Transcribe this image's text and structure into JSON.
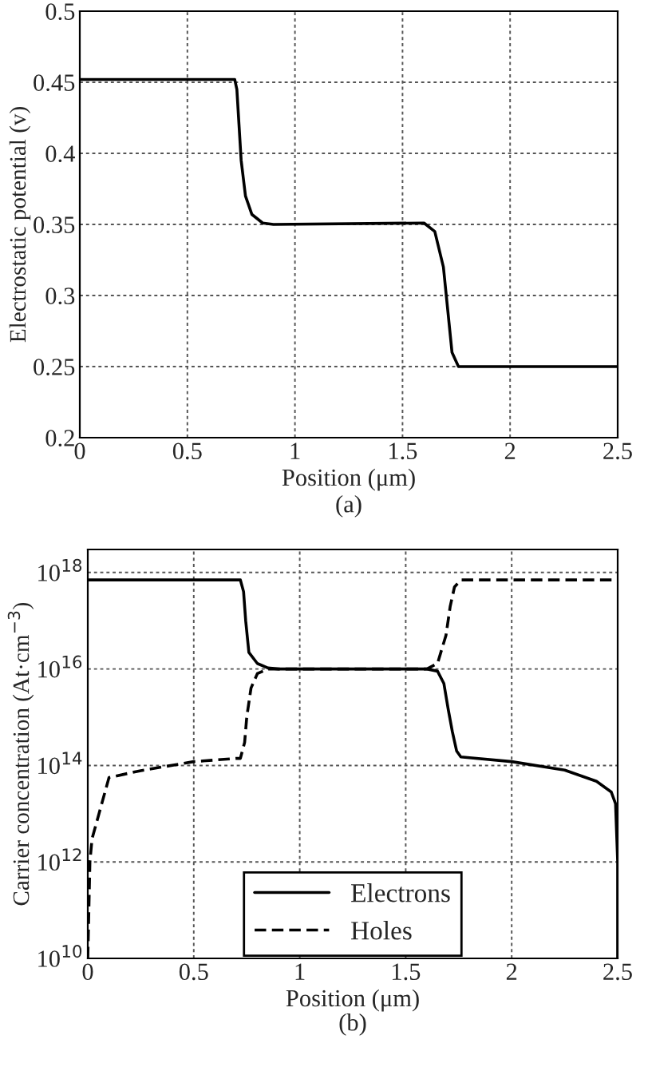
{
  "chart_data": [
    {
      "type": "line",
      "xlabel": "Position (μm)",
      "ylabel": "Electrostatic potential (v)",
      "annotations": [
        "(a)"
      ],
      "xlim": [
        0,
        2.5
      ],
      "xticks": [
        0,
        0.5,
        1,
        1.5,
        2,
        2.5
      ],
      "ylim": [
        0.2,
        0.5
      ],
      "yticks": [
        0.2,
        0.25,
        0.3,
        0.35,
        0.4,
        0.45,
        0.5
      ],
      "grid": true,
      "legend": false,
      "series": [
        {
          "color": "#000000",
          "line_style": "solid",
          "x": [
            0,
            0.72,
            0.73,
            0.74,
            0.75,
            0.77,
            0.8,
            0.85,
            0.9,
            1.6,
            1.65,
            1.69,
            1.71,
            1.73,
            1.76,
            2.5
          ],
          "values": [
            0.452,
            0.452,
            0.445,
            0.42,
            0.395,
            0.37,
            0.357,
            0.351,
            0.35,
            0.351,
            0.345,
            0.32,
            0.29,
            0.26,
            0.25,
            0.25
          ]
        }
      ]
    },
    {
      "type": "line",
      "xlabel": "Position (μm)",
      "ylabel": "Carrier concentration (At·cm$^{−3}$)",
      "annotations": [
        "(b)"
      ],
      "log": "y",
      "xlim": [
        0,
        2.5
      ],
      "xticks": [
        0,
        0.5,
        1,
        1.5,
        2,
        2.5
      ],
      "ylim": [
        10000000000.0,
        3e+18
      ],
      "yticks": [
        {
          "value": 10000000000.0,
          "label": "10$^{10}$"
        },
        {
          "value": 1000000000000.0,
          "label": "10$^{12}$"
        },
        {
          "value": 100000000000000.0,
          "label": "10$^{14}$"
        },
        {
          "value": 1e+16,
          "label": "10$^{16}$"
        },
        {
          "value": 1e+18,
          "label": "10$^{18}$"
        }
      ],
      "grid": true,
      "legend": "bottom",
      "series": [
        {
          "name": "Electrons",
          "color": "#000000",
          "line_style": "solid",
          "x": [
            0,
            0.72,
            0.735,
            0.745,
            0.76,
            0.8,
            0.85,
            0.9,
            1.6,
            1.65,
            1.68,
            1.7,
            1.72,
            1.74,
            1.76,
            2.0,
            2.25,
            2.4,
            2.47,
            2.49,
            2.5,
            2.5
          ],
          "values": [
            7e+17,
            7e+17,
            4e+17,
            1e+17,
            2.2e+16,
            1.3e+16,
            1.05e+16,
            1e+16,
            1e+16,
            9000000000000000.0,
            5000000000000000.0,
            1500000000000000.0,
            500000000000000.0,
            200000000000000.0,
            150000000000000.0,
            120000000000000.0,
            80000000000000.0,
            47000000000000.0,
            28000000000000.0,
            16000000000000.0,
            1000000000000.0,
            10000000000.0
          ]
        },
        {
          "name": "Holes",
          "color": "#000000",
          "line_style": "dashed",
          "x": [
            0,
            0.005,
            0.01,
            0.02,
            0.1,
            0.25,
            0.5,
            0.7,
            0.72,
            0.74,
            0.75,
            0.77,
            0.8,
            0.85,
            1.6,
            1.65,
            1.69,
            1.71,
            1.73,
            1.76,
            2.5
          ],
          "values": [
            10000000000.0,
            100000000000.0,
            1000000000000.0,
            3000000000000.0,
            56000000000000.0,
            78000000000000.0,
            120000000000000.0,
            140000000000000.0,
            140000000000000.0,
            300000000000000.0,
            1000000000000000.0,
            4000000000000000.0,
            8000000000000000.0,
            1e+16,
            1e+16,
            1.3e+16,
            5e+16,
            2e+17,
            5e+17,
            7e+17,
            7e+17
          ]
        }
      ]
    }
  ]
}
